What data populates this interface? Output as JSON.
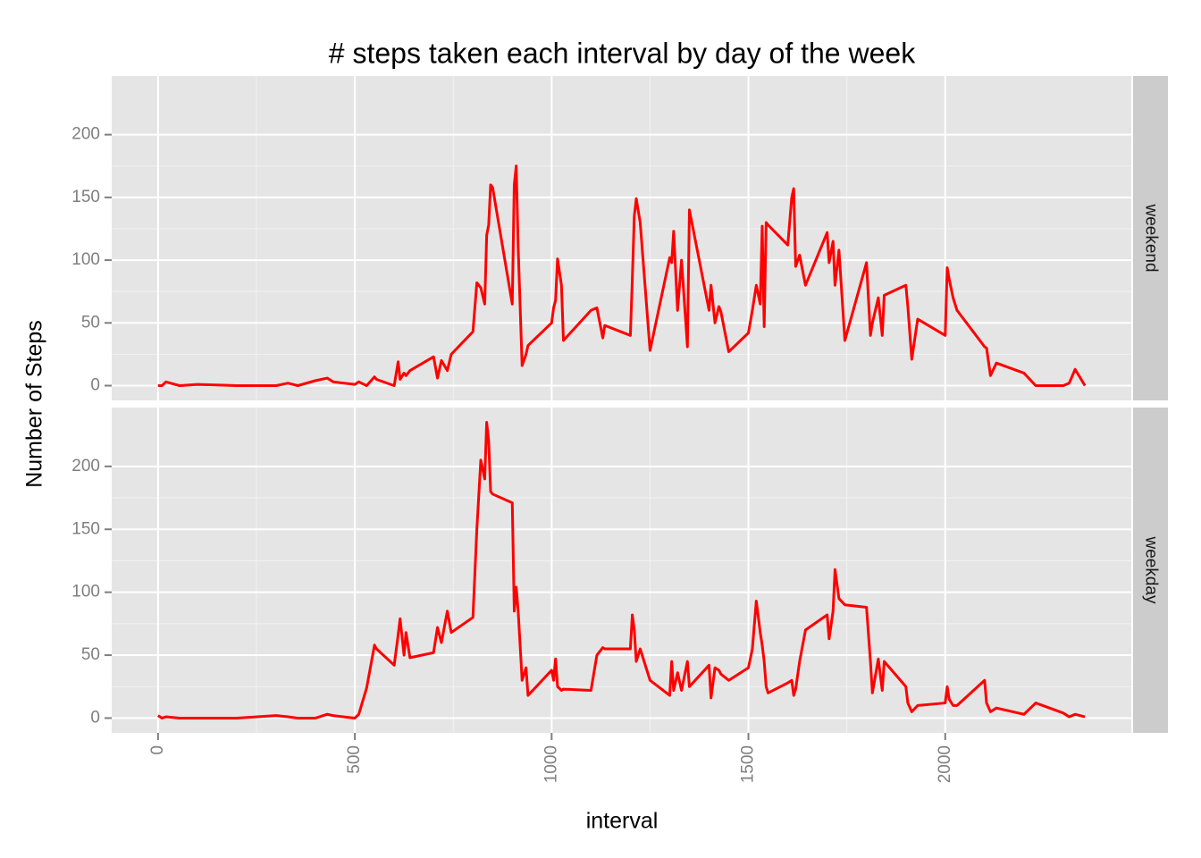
{
  "chart_data": {
    "type": "line",
    "title": "# steps taken each interval by day of the week",
    "x_label": "interval",
    "y_label": "Number of Steps",
    "x": [
      0,
      10,
      20,
      55,
      100,
      200,
      300,
      330,
      355,
      400,
      430,
      445,
      500,
      510,
      530,
      550,
      555,
      600,
      610,
      615,
      625,
      630,
      640,
      700,
      710,
      720,
      735,
      745,
      800,
      810,
      820,
      830,
      835,
      840,
      845,
      850,
      900,
      905,
      910,
      915,
      925,
      935,
      940,
      1000,
      1005,
      1010,
      1015,
      1025,
      1030,
      1100,
      1115,
      1130,
      1135,
      1200,
      1205,
      1210,
      1215,
      1225,
      1250,
      1300,
      1305,
      1310,
      1320,
      1330,
      1345,
      1350,
      1400,
      1405,
      1415,
      1425,
      1430,
      1450,
      1500,
      1510,
      1520,
      1530,
      1535,
      1540,
      1545,
      1550,
      1600,
      1610,
      1615,
      1620,
      1630,
      1645,
      1700,
      1705,
      1715,
      1720,
      1730,
      1745,
      1800,
      1810,
      1815,
      1830,
      1840,
      1845,
      1900,
      1905,
      1915,
      1930,
      2000,
      2005,
      2010,
      2020,
      2030,
      2100,
      2105,
      2115,
      2130,
      2200,
      2230,
      2300,
      2315,
      2330,
      2355
    ],
    "series": [
      {
        "name": "weekend",
        "color": "#ff0000",
        "values": [
          0,
          0,
          3,
          0,
          1,
          0,
          0,
          2,
          0,
          4,
          6,
          3,
          1,
          3,
          0,
          7,
          5,
          0,
          19,
          5,
          10,
          8,
          12,
          23,
          6,
          20,
          12,
          25,
          43,
          82,
          78,
          65,
          120,
          128,
          160,
          158,
          65,
          160,
          175,
          110,
          16,
          25,
          32,
          50,
          62,
          68,
          101,
          80,
          36,
          60,
          62,
          38,
          48,
          40,
          85,
          135,
          149,
          130,
          28,
          102,
          98,
          123,
          60,
          100,
          31,
          140,
          60,
          80,
          50,
          63,
          59,
          27,
          42,
          60,
          80,
          65,
          127,
          47,
          130,
          128,
          112,
          150,
          157,
          95,
          104,
          80,
          122,
          98,
          115,
          80,
          108,
          36,
          98,
          40,
          50,
          70,
          40,
          72,
          80,
          63,
          21,
          53,
          40,
          94,
          85,
          70,
          60,
          31,
          30,
          8,
          18,
          10,
          0,
          0,
          2,
          13,
          0
        ]
      },
      {
        "name": "weekday",
        "color": "#ff0000",
        "values": [
          2,
          0,
          1,
          0,
          0,
          0,
          2,
          1,
          0,
          0,
          3,
          2,
          0,
          3,
          24,
          58,
          55,
          42,
          66,
          79,
          50,
          68,
          48,
          52,
          72,
          60,
          85,
          68,
          80,
          150,
          205,
          190,
          235,
          220,
          180,
          178,
          171,
          85,
          104,
          85,
          30,
          40,
          18,
          38,
          30,
          47,
          25,
          22,
          23,
          22,
          50,
          56,
          55,
          55,
          82,
          70,
          45,
          55,
          30,
          18,
          45,
          22,
          36,
          22,
          45,
          25,
          42,
          16,
          40,
          38,
          35,
          30,
          40,
          55,
          93,
          68,
          58,
          45,
          25,
          20,
          28,
          30,
          18,
          23,
          45,
          70,
          82,
          63,
          85,
          118,
          95,
          90,
          88,
          45,
          20,
          47,
          22,
          45,
          25,
          12,
          5,
          10,
          12,
          25,
          15,
          10,
          10,
          30,
          12,
          5,
          8,
          3,
          12,
          4,
          1,
          3,
          1
        ]
      }
    ],
    "xlim": [
      -117.75,
      2472.75
    ],
    "xticks": [
      0,
      500,
      1000,
      1500,
      2000
    ],
    "ylim": [
      -11.75,
      246.75
    ],
    "yticks": [
      0,
      50,
      100,
      150,
      200
    ],
    "grid": true
  }
}
